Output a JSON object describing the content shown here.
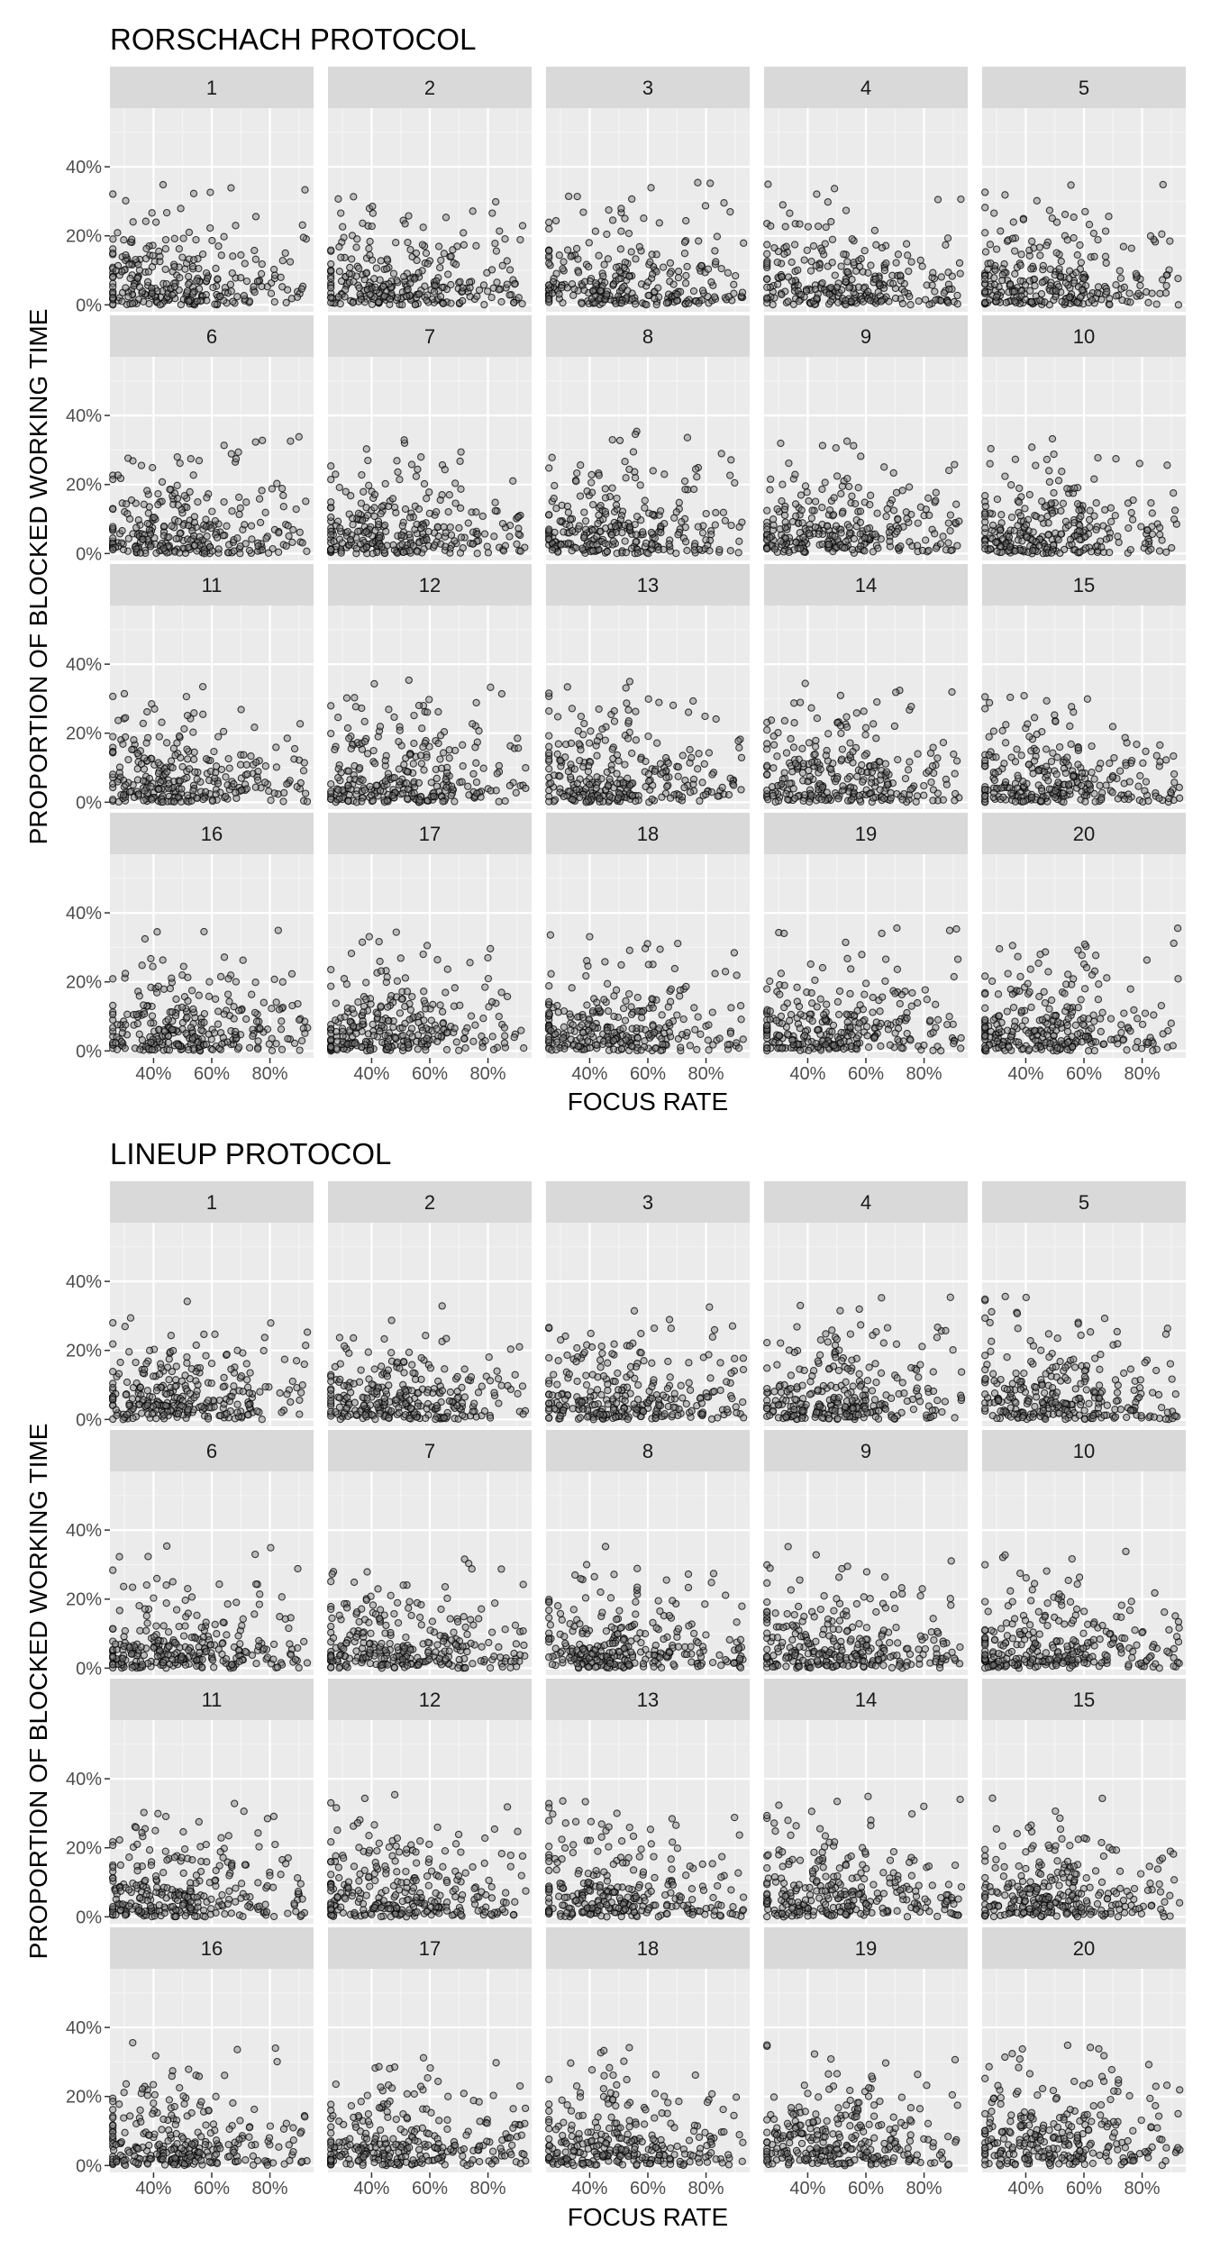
{
  "chart_data": [
    {
      "type": "scatter",
      "title": "RORSCHACH PROTOCOL",
      "xlabel": "FOCUS RATE",
      "ylabel": "PROPORTION OF BLOCKED WORKING TIME",
      "xlim": [
        0.25,
        0.95
      ],
      "ylim": [
        -0.02,
        0.57
      ],
      "x_ticks": [
        "40%",
        "60%",
        "80%"
      ],
      "x_tick_values": [
        0.4,
        0.6,
        0.8
      ],
      "y_ticks": [
        "0%",
        "20%",
        "40%"
      ],
      "y_tick_values": [
        0,
        0.2,
        0.4
      ],
      "facet_layout": {
        "cols": 5,
        "rows": 4
      },
      "panels": [
        {
          "label": "1",
          "n_points": 280
        },
        {
          "label": "2",
          "n_points": 280
        },
        {
          "label": "3",
          "n_points": 280
        },
        {
          "label": "4",
          "n_points": 280
        },
        {
          "label": "5",
          "n_points": 280
        },
        {
          "label": "6",
          "n_points": 280
        },
        {
          "label": "7",
          "n_points": 280
        },
        {
          "label": "8",
          "n_points": 280
        },
        {
          "label": "9",
          "n_points": 280
        },
        {
          "label": "10",
          "n_points": 280
        },
        {
          "label": "11",
          "n_points": 280
        },
        {
          "label": "12",
          "n_points": 280
        },
        {
          "label": "13",
          "n_points": 280
        },
        {
          "label": "14",
          "n_points": 280
        },
        {
          "label": "15",
          "n_points": 280
        },
        {
          "label": "16",
          "n_points": 280
        },
        {
          "label": "17",
          "n_points": 280
        },
        {
          "label": "18",
          "n_points": 280
        },
        {
          "label": "19",
          "n_points": 280
        },
        {
          "label": "20",
          "n_points": 280
        }
      ],
      "point_color": "#000000",
      "point_fill": "#808080",
      "panel_background": "#ebebeb",
      "strip_background": "#d9d9d9",
      "grid": true
    },
    {
      "type": "scatter",
      "title": "LINEUP PROTOCOL",
      "xlabel": "FOCUS RATE",
      "ylabel": "PROPORTION OF BLOCKED WORKING TIME",
      "xlim": [
        0.25,
        0.95
      ],
      "ylim": [
        -0.02,
        0.57
      ],
      "x_ticks": [
        "40%",
        "60%",
        "80%"
      ],
      "x_tick_values": [
        0.4,
        0.6,
        0.8
      ],
      "y_ticks": [
        "0%",
        "20%",
        "40%"
      ],
      "y_tick_values": [
        0,
        0.2,
        0.4
      ],
      "facet_layout": {
        "cols": 5,
        "rows": 4
      },
      "panels": [
        {
          "label": "1",
          "n_points": 280
        },
        {
          "label": "2",
          "n_points": 280
        },
        {
          "label": "3",
          "n_points": 280
        },
        {
          "label": "4",
          "n_points": 280
        },
        {
          "label": "5",
          "n_points": 280
        },
        {
          "label": "6",
          "n_points": 280
        },
        {
          "label": "7",
          "n_points": 280
        },
        {
          "label": "8",
          "n_points": 280
        },
        {
          "label": "9",
          "n_points": 280
        },
        {
          "label": "10",
          "n_points": 280
        },
        {
          "label": "11",
          "n_points": 280
        },
        {
          "label": "12",
          "n_points": 280
        },
        {
          "label": "13",
          "n_points": 280
        },
        {
          "label": "14",
          "n_points": 280
        },
        {
          "label": "15",
          "n_points": 280
        },
        {
          "label": "16",
          "n_points": 280
        },
        {
          "label": "17",
          "n_points": 280
        },
        {
          "label": "18",
          "n_points": 280
        },
        {
          "label": "19",
          "n_points": 280
        },
        {
          "label": "20",
          "n_points": 280
        }
      ],
      "point_color": "#000000",
      "point_fill": "#808080",
      "panel_background": "#ebebeb",
      "strip_background": "#d9d9d9",
      "grid": true
    }
  ]
}
